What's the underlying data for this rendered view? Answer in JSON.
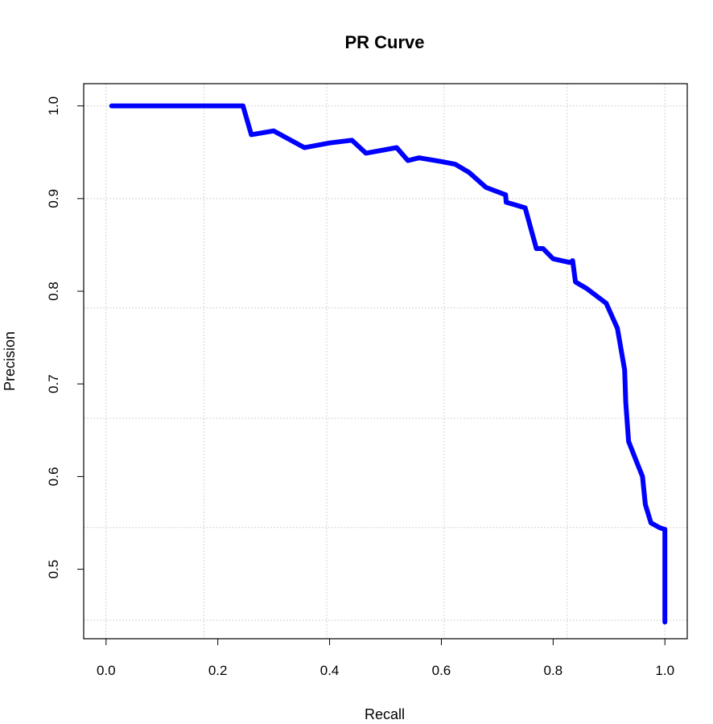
{
  "chart_data": {
    "type": "line",
    "title": "PR Curve",
    "xlabel": "Recall",
    "ylabel": "Precision",
    "xlim": [
      -0.04,
      1.04
    ],
    "ylim": [
      0.425,
      1.024
    ],
    "grid": true,
    "x_ticks": [
      "0.0",
      "0.2",
      "0.4",
      "0.6",
      "0.8",
      "1.0"
    ],
    "x_tick_values": [
      0.0,
      0.2,
      0.4,
      0.6,
      0.8,
      1.0
    ],
    "y_ticks": [
      "0.5",
      "0.6",
      "0.7",
      "0.8",
      "0.9",
      "1.0"
    ],
    "y_tick_values": [
      0.5,
      0.6,
      0.7,
      0.8,
      0.9,
      1.0
    ],
    "x_grid_values": [
      0.0,
      0.175,
      0.395,
      0.605,
      0.825,
      1.0
    ],
    "y_grid_values": [
      0.445,
      0.545,
      0.663,
      0.782,
      0.9,
      1.0
    ],
    "line_color": "#0000ff",
    "grid_color": "#d3d3d3",
    "series": [
      {
        "x": [
          0.01,
          0.05,
          0.1,
          0.15,
          0.2,
          0.245,
          0.26,
          0.3,
          0.355,
          0.4,
          0.44,
          0.465,
          0.52,
          0.54,
          0.56,
          0.6,
          0.625,
          0.65,
          0.68,
          0.715,
          0.716,
          0.75,
          0.77,
          0.782,
          0.8,
          0.83,
          0.835,
          0.84,
          0.86,
          0.895,
          0.915,
          0.928,
          0.93,
          0.935,
          0.95,
          0.96,
          0.965,
          0.975,
          0.99,
          1.0,
          1.0
        ],
        "y": [
          1.0,
          1.0,
          1.0,
          1.0,
          1.0,
          1.0,
          0.969,
          0.973,
          0.955,
          0.96,
          0.963,
          0.949,
          0.955,
          0.941,
          0.944,
          0.94,
          0.937,
          0.928,
          0.912,
          0.904,
          0.896,
          0.89,
          0.846,
          0.846,
          0.835,
          0.831,
          0.833,
          0.81,
          0.803,
          0.787,
          0.76,
          0.715,
          0.68,
          0.638,
          0.615,
          0.6,
          0.57,
          0.55,
          0.545,
          0.543,
          0.443
        ]
      }
    ]
  }
}
